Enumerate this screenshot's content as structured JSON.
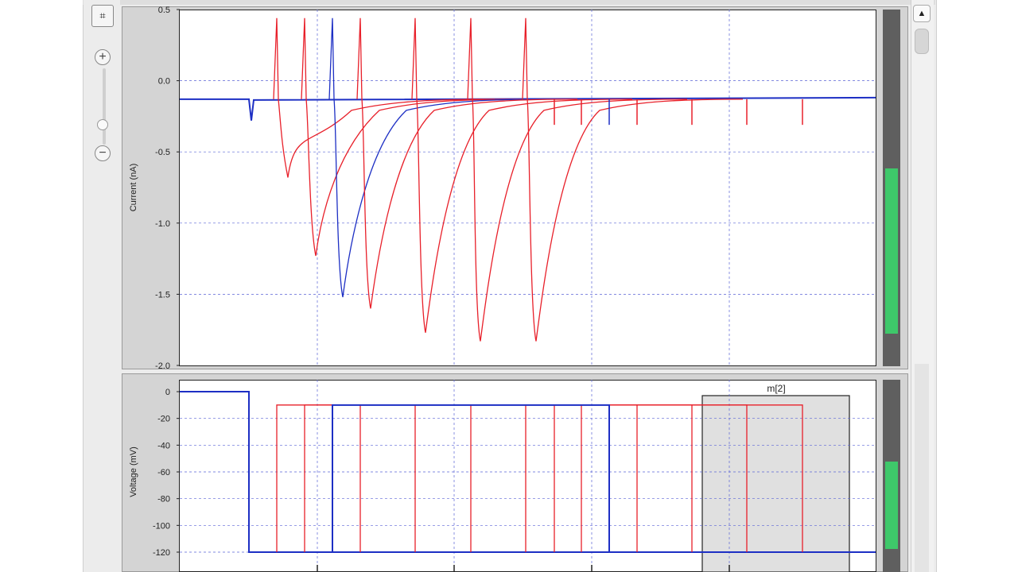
{
  "toolbar": {
    "tool_icon": "selection-tool-icon",
    "tool_glyph": "⌗",
    "zoom_in": "+",
    "zoom_out": "−",
    "scroll_up": "▲"
  },
  "colors": {
    "red": "#e8202a",
    "blue": "#1d2fc4",
    "grid": "#5a64d6",
    "meter_fill": "#3ec86a",
    "selection_fill": "#e0e0e0"
  },
  "chart_data": [
    {
      "type": "line",
      "ylabel": "Current (nA)",
      "xlabel": "",
      "ylim": [
        -2.0,
        0.5
      ],
      "yticks": [
        "0.5",
        "0.0",
        "-0.5",
        "-1.0",
        "-1.5",
        "-2.0"
      ],
      "grid": true,
      "series": [
        {
          "color": "red",
          "spike_x": 348,
          "trough": -0.68,
          "trough_x": 362
        },
        {
          "color": "red",
          "spike_x": 383,
          "trough": -1.23,
          "trough_x": 397
        },
        {
          "color": "blue",
          "spike_x": 418,
          "trough": -1.52,
          "trough_x": 431
        },
        {
          "color": "red",
          "spike_x": 453,
          "trough": -1.6,
          "trough_x": 466
        },
        {
          "color": "red",
          "spike_x": 522,
          "trough": -1.77,
          "trough_x": 535
        },
        {
          "color": "red",
          "spike_x": 592,
          "trough": -1.83,
          "trough_x": 604
        },
        {
          "color": "red",
          "spike_x": 661,
          "trough": -1.83,
          "trough_x": 674
        }
      ],
      "baseline": -0.13
    },
    {
      "type": "line",
      "ylabel": "Voltage (mV)",
      "xlabel": "",
      "ylim": [
        -130,
        5
      ],
      "yticks": [
        "0",
        "-20",
        "-40",
        "-60",
        "-80",
        "-100",
        "-120"
      ],
      "grid": true,
      "selection_label": "m[2]",
      "holding": -120,
      "step": -10
    }
  ]
}
